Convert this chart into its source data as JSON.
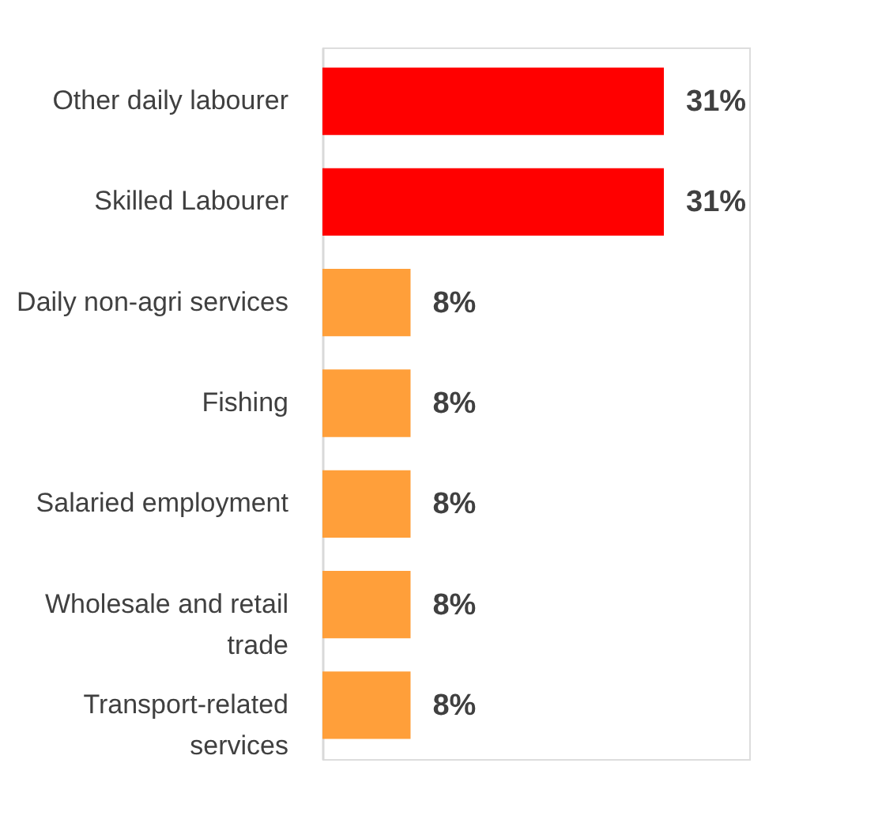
{
  "chart_data": {
    "type": "bar",
    "orientation": "horizontal",
    "categories": [
      "Other daily labourer",
      "Skilled Labourer",
      "Daily non-agri services",
      "Fishing",
      "Salaried employment",
      "Wholesale and retail trade",
      "Transport-related services"
    ],
    "values": [
      31,
      31,
      8,
      8,
      8,
      8,
      8
    ],
    "colors": [
      "#ff0000",
      "#ff0000",
      "#ff9f3a",
      "#ff9f3a",
      "#ff9f3a",
      "#ff9f3a",
      "#ff9f3a"
    ],
    "value_labels": [
      "31%",
      "31%",
      "8%",
      "8%",
      "8%",
      "8%",
      "8%"
    ]
  }
}
